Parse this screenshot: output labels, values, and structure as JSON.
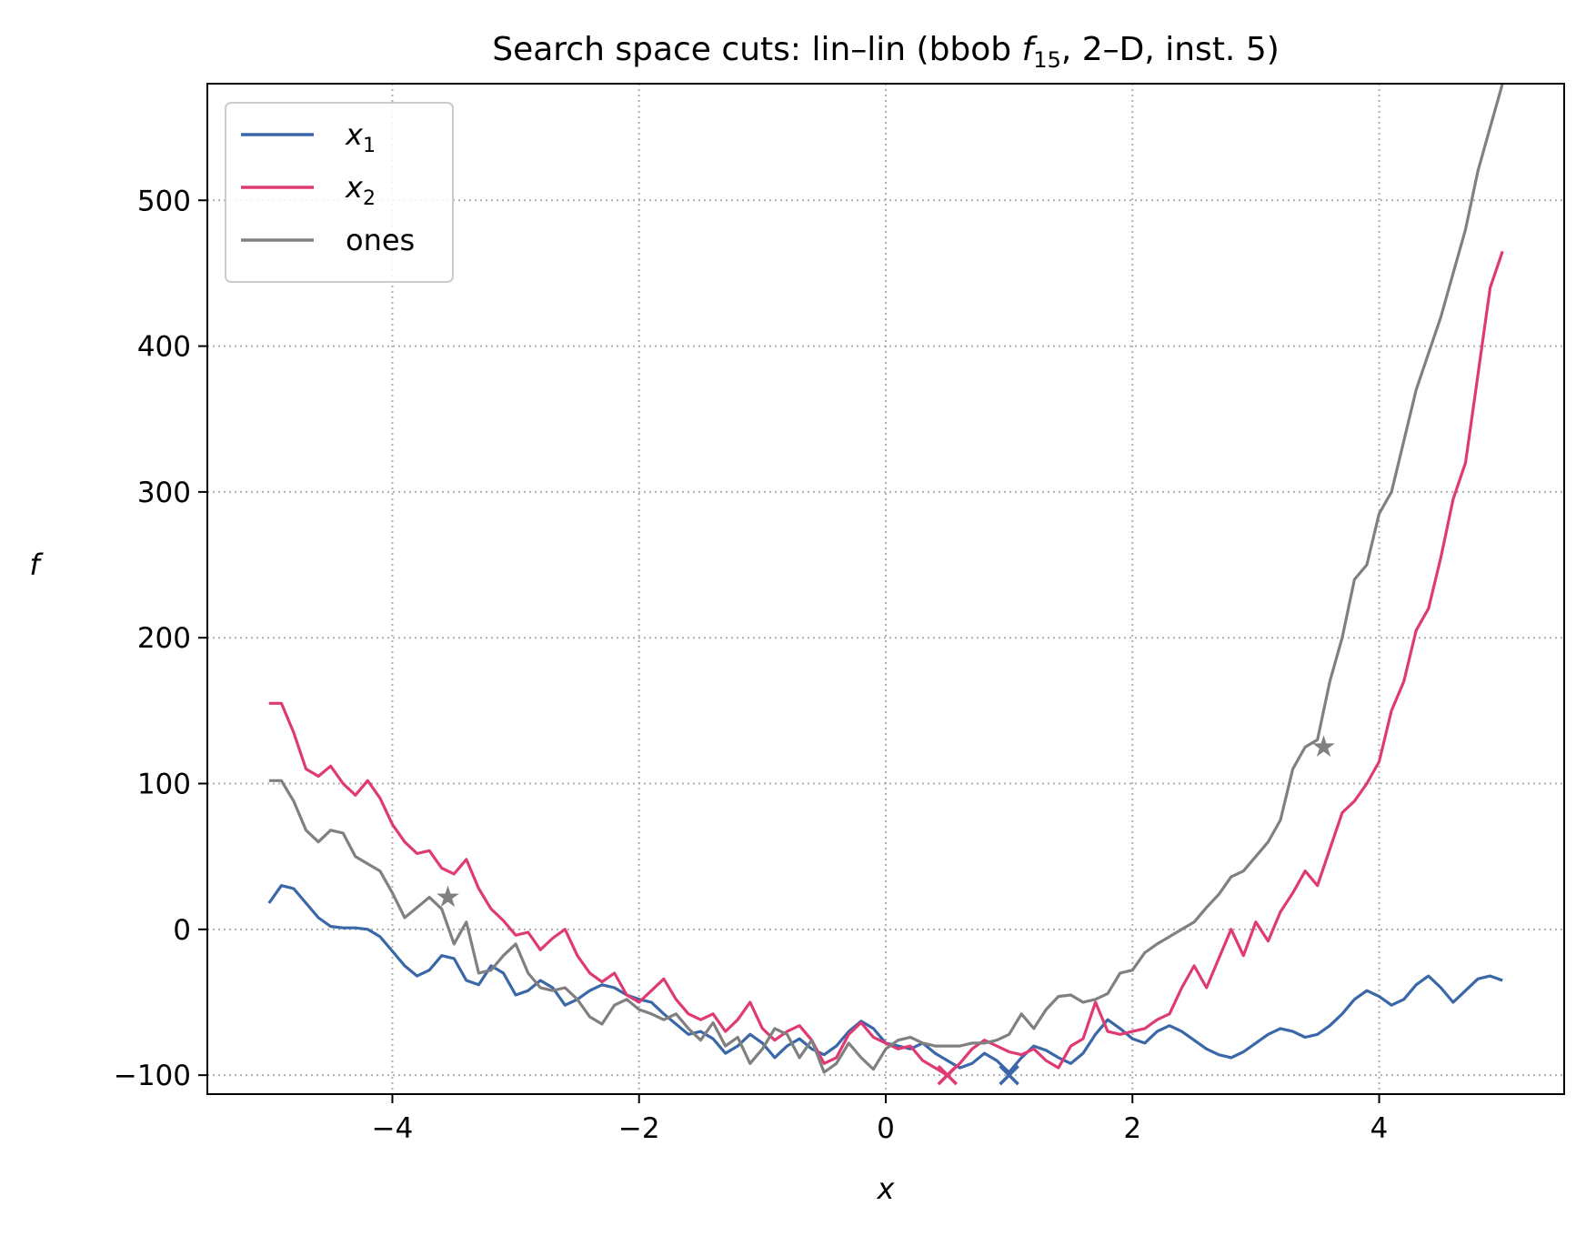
{
  "chart_data": {
    "type": "line",
    "title": {
      "prefix": "Search space cuts: lin–lin (bbob ",
      "func_symbol": "f",
      "func_subscript": "15",
      "suffix": ", 2–D, inst. 5)"
    },
    "xlabel": "x",
    "ylabel": "f",
    "xlim": [
      -5.5,
      5.5
    ],
    "ylim": [
      -113,
      580
    ],
    "xticks": [
      -4,
      -2,
      0,
      2,
      4
    ],
    "xtick_labels": [
      "−4",
      "−2",
      "0",
      "2",
      "4"
    ],
    "yticks": [
      -100,
      0,
      100,
      200,
      300,
      400,
      500
    ],
    "ytick_labels": [
      "−100",
      "0",
      "100",
      "200",
      "300",
      "400",
      "500"
    ],
    "grid": true,
    "legend_position": "top-left",
    "series": [
      {
        "name": "x",
        "name_subscript": "1",
        "color": "#3a67a8",
        "x": [
          -5.0,
          -4.9,
          -4.8,
          -4.7,
          -4.6,
          -4.5,
          -4.4,
          -4.3,
          -4.2,
          -4.1,
          -4.0,
          -3.9,
          -3.8,
          -3.7,
          -3.6,
          -3.5,
          -3.4,
          -3.3,
          -3.2,
          -3.1,
          -3.0,
          -2.9,
          -2.8,
          -2.7,
          -2.6,
          -2.5,
          -2.4,
          -2.3,
          -2.2,
          -2.1,
          -2.0,
          -1.9,
          -1.8,
          -1.7,
          -1.6,
          -1.5,
          -1.4,
          -1.3,
          -1.2,
          -1.1,
          -1.0,
          -0.9,
          -0.8,
          -0.7,
          -0.6,
          -0.5,
          -0.4,
          -0.3,
          -0.2,
          -0.1,
          0.0,
          0.1,
          0.2,
          0.3,
          0.4,
          0.5,
          0.6,
          0.7,
          0.8,
          0.9,
          1.0,
          1.1,
          1.2,
          1.3,
          1.4,
          1.5,
          1.6,
          1.7,
          1.8,
          1.9,
          2.0,
          2.1,
          2.2,
          2.3,
          2.4,
          2.5,
          2.6,
          2.7,
          2.8,
          2.9,
          3.0,
          3.1,
          3.2,
          3.3,
          3.4,
          3.5,
          3.6,
          3.7,
          3.8,
          3.9,
          4.0,
          4.1,
          4.2,
          4.3,
          4.4,
          4.5,
          4.6,
          4.7,
          4.8,
          4.9,
          5.0
        ],
        "y": [
          18,
          30,
          28,
          18,
          8,
          2,
          1,
          1,
          0,
          -5,
          -15,
          -25,
          -32,
          -28,
          -18,
          -20,
          -35,
          -38,
          -25,
          -30,
          -45,
          -42,
          -35,
          -40,
          -52,
          -48,
          -42,
          -38,
          -40,
          -45,
          -48,
          -50,
          -58,
          -65,
          -72,
          -70,
          -75,
          -85,
          -80,
          -72,
          -78,
          -88,
          -80,
          -75,
          -82,
          -86,
          -80,
          -70,
          -63,
          -68,
          -78,
          -80,
          -82,
          -78,
          -85,
          -90,
          -95,
          -92,
          -85,
          -90,
          -98,
          -88,
          -80,
          -83,
          -88,
          -92,
          -85,
          -72,
          -62,
          -68,
          -75,
          -78,
          -70,
          -66,
          -70,
          -76,
          -82,
          -86,
          -88,
          -84,
          -78,
          -72,
          -68,
          -70,
          -74,
          -72,
          -66,
          -58,
          -48,
          -42,
          -46,
          -52,
          -48,
          -38,
          -32,
          -40,
          -50,
          -42,
          -34,
          -32,
          -35
        ]
      },
      {
        "name": "x",
        "name_subscript": "2",
        "color": "#e03a75",
        "x": [
          -5.0,
          -4.9,
          -4.8,
          -4.7,
          -4.6,
          -4.5,
          -4.4,
          -4.3,
          -4.2,
          -4.1,
          -4.0,
          -3.9,
          -3.8,
          -3.7,
          -3.6,
          -3.5,
          -3.4,
          -3.3,
          -3.2,
          -3.1,
          -3.0,
          -2.9,
          -2.8,
          -2.7,
          -2.6,
          -2.5,
          -2.4,
          -2.3,
          -2.2,
          -2.1,
          -2.0,
          -1.9,
          -1.8,
          -1.7,
          -1.6,
          -1.5,
          -1.4,
          -1.3,
          -1.2,
          -1.1,
          -1.0,
          -0.9,
          -0.8,
          -0.7,
          -0.6,
          -0.5,
          -0.4,
          -0.3,
          -0.2,
          -0.1,
          0.0,
          0.1,
          0.2,
          0.3,
          0.4,
          0.5,
          0.6,
          0.7,
          0.8,
          0.9,
          1.0,
          1.1,
          1.2,
          1.3,
          1.4,
          1.5,
          1.6,
          1.7,
          1.8,
          1.9,
          2.0,
          2.1,
          2.2,
          2.3,
          2.4,
          2.5,
          2.6,
          2.7,
          2.8,
          2.9,
          3.0,
          3.1,
          3.2,
          3.3,
          3.4,
          3.5,
          3.6,
          3.7,
          3.8,
          3.9,
          4.0,
          4.1,
          4.2,
          4.3,
          4.4,
          4.5,
          4.6,
          4.7,
          4.8,
          4.9,
          5.0
        ],
        "y": [
          155,
          155,
          135,
          110,
          105,
          112,
          100,
          92,
          102,
          90,
          72,
          60,
          52,
          54,
          42,
          38,
          48,
          28,
          14,
          6,
          -4,
          -2,
          -14,
          -6,
          0,
          -18,
          -30,
          -36,
          -30,
          -45,
          -50,
          -42,
          -34,
          -48,
          -58,
          -62,
          -58,
          -70,
          -62,
          -50,
          -68,
          -76,
          -70,
          -66,
          -76,
          -92,
          -88,
          -72,
          -64,
          -74,
          -78,
          -82,
          -80,
          -90,
          -95,
          -100,
          -92,
          -82,
          -76,
          -80,
          -84,
          -86,
          -82,
          -90,
          -95,
          -80,
          -75,
          -50,
          -70,
          -72,
          -70,
          -68,
          -62,
          -58,
          -40,
          -25,
          -40,
          -20,
          0,
          -18,
          5,
          -8,
          12,
          25,
          40,
          30,
          55,
          80,
          88,
          100,
          115,
          150,
          170,
          205,
          220,
          255,
          295,
          320,
          380,
          440,
          465
        ]
      },
      {
        "name": "ones",
        "name_subscript": "",
        "color": "#808080",
        "x": [
          -5.0,
          -4.9,
          -4.8,
          -4.7,
          -4.6,
          -4.5,
          -4.4,
          -4.3,
          -4.2,
          -4.1,
          -4.0,
          -3.9,
          -3.8,
          -3.7,
          -3.6,
          -3.5,
          -3.4,
          -3.3,
          -3.2,
          -3.1,
          -3.0,
          -2.9,
          -2.8,
          -2.7,
          -2.6,
          -2.5,
          -2.4,
          -2.3,
          -2.2,
          -2.1,
          -2.0,
          -1.9,
          -1.8,
          -1.7,
          -1.6,
          -1.5,
          -1.4,
          -1.3,
          -1.2,
          -1.1,
          -1.0,
          -0.9,
          -0.8,
          -0.7,
          -0.6,
          -0.5,
          -0.4,
          -0.3,
          -0.2,
          -0.1,
          0.0,
          0.1,
          0.2,
          0.3,
          0.4,
          0.5,
          0.6,
          0.7,
          0.8,
          0.9,
          1.0,
          1.1,
          1.2,
          1.3,
          1.4,
          1.5,
          1.6,
          1.7,
          1.8,
          1.9,
          2.0,
          2.1,
          2.2,
          2.3,
          2.4,
          2.5,
          2.6,
          2.7,
          2.8,
          2.9,
          3.0,
          3.1,
          3.2,
          3.3,
          3.4,
          3.5,
          3.6,
          3.7,
          3.8,
          3.9,
          4.0,
          4.1,
          4.2,
          4.3,
          4.4,
          4.5,
          4.6,
          4.7,
          4.8,
          4.9,
          5.0
        ],
        "y": [
          102,
          102,
          88,
          68,
          60,
          68,
          66,
          50,
          45,
          40,
          25,
          8,
          15,
          22,
          14,
          -10,
          5,
          -30,
          -28,
          -18,
          -10,
          -30,
          -40,
          -42,
          -40,
          -48,
          -60,
          -65,
          -52,
          -48,
          -55,
          -58,
          -62,
          -58,
          -68,
          -76,
          -64,
          -80,
          -74,
          -92,
          -82,
          -68,
          -72,
          -88,
          -76,
          -98,
          -92,
          -78,
          -88,
          -96,
          -82,
          -76,
          -74,
          -78,
          -80,
          -80,
          -80,
          -78,
          -78,
          -76,
          -72,
          -58,
          -68,
          -55,
          -46,
          -45,
          -50,
          -48,
          -44,
          -30,
          -28,
          -16,
          -10,
          -5,
          0,
          5,
          15,
          24,
          36,
          40,
          50,
          60,
          75,
          110,
          125,
          130,
          170,
          200,
          240,
          250,
          285,
          300,
          335,
          370,
          395,
          420,
          450,
          480,
          520,
          550,
          580
        ]
      }
    ],
    "markers": [
      {
        "series": "x1",
        "symbol": "×",
        "x": 1.0,
        "y": -100,
        "color": "#3a67a8"
      },
      {
        "series": "x2",
        "symbol": "×",
        "x": 0.5,
        "y": -100,
        "color": "#e03a75"
      },
      {
        "series": "ones",
        "symbol": "*",
        "x": -3.55,
        "y": 22,
        "color": "#808080"
      },
      {
        "series": "ones",
        "symbol": "*",
        "x": 3.55,
        "y": 125,
        "color": "#808080"
      }
    ]
  }
}
